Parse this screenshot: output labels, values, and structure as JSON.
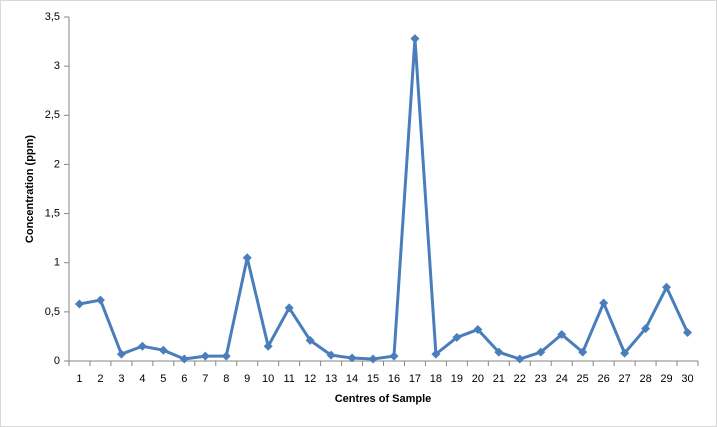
{
  "chart_data": {
    "type": "line",
    "x_label": "Centres of Sample",
    "y_label": "Concentration (ppm)",
    "categories": [
      1,
      2,
      3,
      4,
      5,
      6,
      7,
      8,
      9,
      10,
      11,
      12,
      13,
      14,
      15,
      16,
      17,
      18,
      19,
      20,
      21,
      22,
      23,
      24,
      25,
      26,
      27,
      28,
      29,
      30
    ],
    "series": [
      {
        "name": "Concentration",
        "color": "#4a7ebb",
        "values": [
          0.58,
          0.62,
          0.07,
          0.15,
          0.11,
          0.02,
          0.05,
          0.05,
          1.05,
          0.15,
          0.54,
          0.21,
          0.06,
          0.03,
          0.02,
          0.05,
          3.28,
          0.07,
          0.24,
          0.32,
          0.09,
          0.02,
          0.09,
          0.27,
          0.09,
          0.59,
          0.08,
          0.33,
          0.75,
          0.29
        ]
      }
    ],
    "ylim": [
      0,
      3.5
    ],
    "yticks": [
      0,
      {
        "value": 0.5,
        "label": "0,5"
      },
      1,
      {
        "value": 1.5,
        "label": "1,5"
      },
      2,
      {
        "value": 2.5,
        "label": "2,5"
      },
      3,
      {
        "value": 3.5,
        "label": "3,5"
      }
    ],
    "grid": false
  }
}
